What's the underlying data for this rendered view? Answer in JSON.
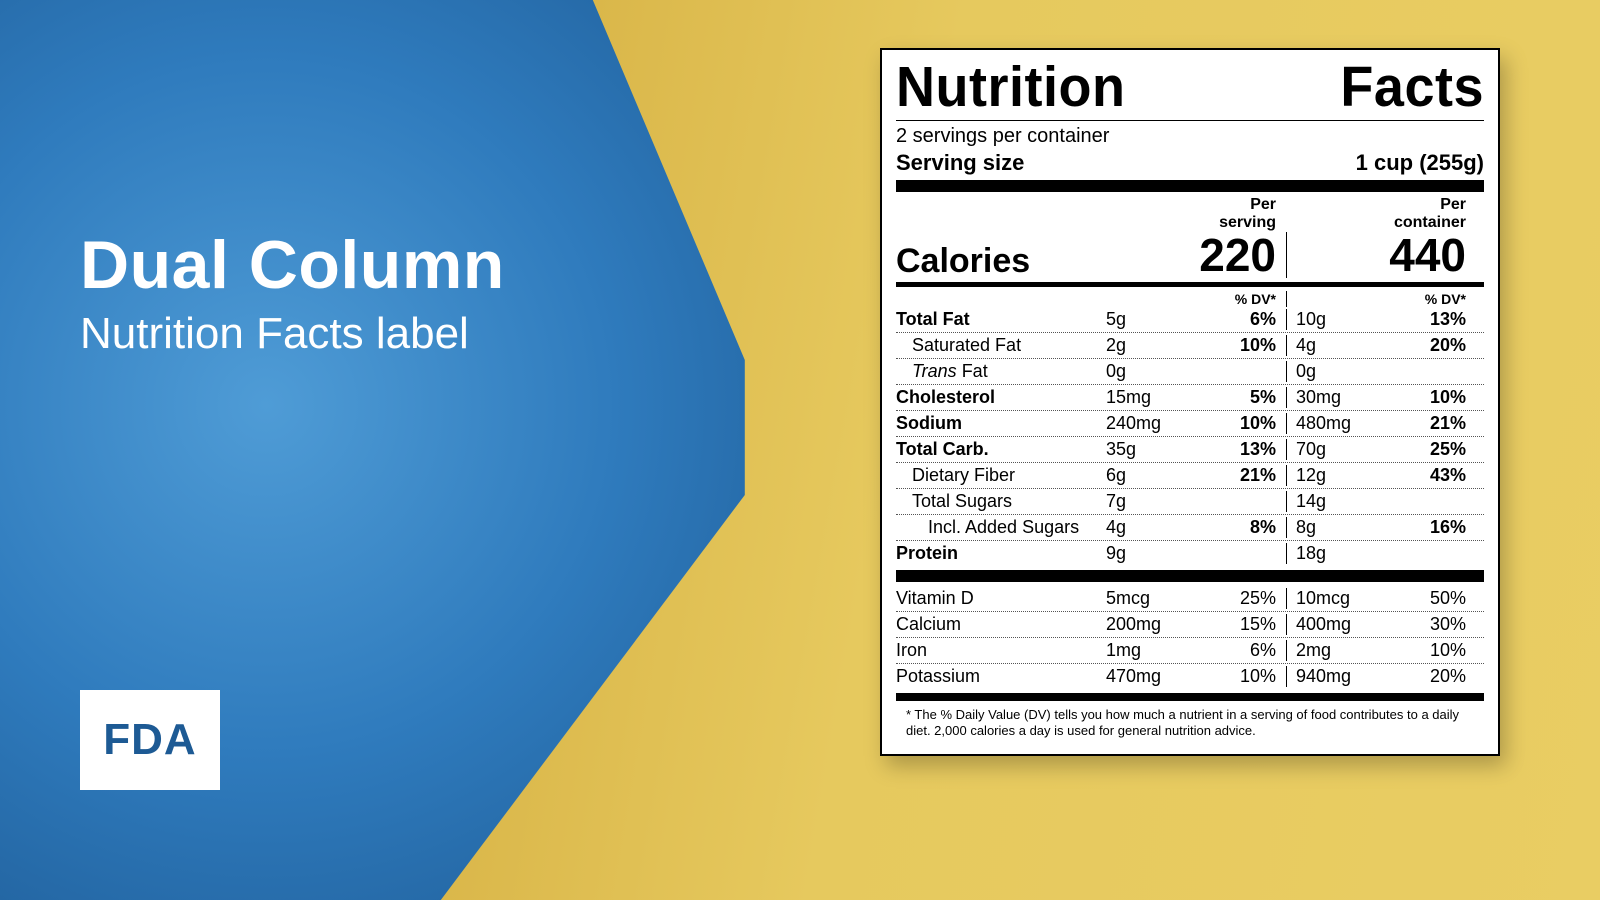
{
  "colors": {
    "blue_center": "#4f9cd6",
    "blue_mid": "#2f7bbd",
    "blue_edge": "#1d5a94",
    "gold_dark": "#c79a2a",
    "gold_light": "#e9cd63",
    "white": "#ffffff",
    "black": "#000000"
  },
  "left": {
    "title": "Dual Column",
    "subtitle": "Nutrition Facts label",
    "badge": "FDA"
  },
  "label": {
    "title_left": "Nutrition",
    "title_right": "Facts",
    "servings_line": "2 servings per container",
    "serving_size_label": "Serving size",
    "serving_size_value": "1 cup (255g)",
    "per_serving_header": "Per serving",
    "per_container_header": "Per container",
    "calories_label": "Calories",
    "calories_serving": "220",
    "calories_container": "440",
    "dv_header": "% DV*",
    "rows": [
      {
        "name": "Total Fat",
        "indent": 0,
        "bold": true,
        "s_amt": "5g",
        "s_dv": "6%",
        "c_amt": "10g",
        "c_dv": "13%"
      },
      {
        "name": "Saturated Fat",
        "indent": 1,
        "bold": false,
        "s_amt": "2g",
        "s_dv": "10%",
        "c_amt": "4g",
        "c_dv": "20%"
      },
      {
        "name_html": "trans_fat",
        "indent": 1,
        "bold": false,
        "s_amt": "0g",
        "s_dv": "",
        "c_amt": "0g",
        "c_dv": ""
      },
      {
        "name": "Cholesterol",
        "indent": 0,
        "bold": true,
        "s_amt": "15mg",
        "s_dv": "5%",
        "c_amt": "30mg",
        "c_dv": "10%"
      },
      {
        "name": "Sodium",
        "indent": 0,
        "bold": true,
        "s_amt": "240mg",
        "s_dv": "10%",
        "c_amt": "480mg",
        "c_dv": "21%"
      },
      {
        "name": "Total Carb.",
        "indent": 0,
        "bold": true,
        "s_amt": "35g",
        "s_dv": "13%",
        "c_amt": "70g",
        "c_dv": "25%"
      },
      {
        "name": "Dietary Fiber",
        "indent": 1,
        "bold": false,
        "s_amt": "6g",
        "s_dv": "21%",
        "c_amt": "12g",
        "c_dv": "43%"
      },
      {
        "name": "Total Sugars",
        "indent": 1,
        "bold": false,
        "s_amt": "7g",
        "s_dv": "",
        "c_amt": "14g",
        "c_dv": ""
      },
      {
        "name": "Incl. Added Sugars",
        "indent": 2,
        "bold": false,
        "s_amt": "4g",
        "s_dv": "8%",
        "c_amt": "8g",
        "c_dv": "16%"
      },
      {
        "name": "Protein",
        "indent": 0,
        "bold": true,
        "s_amt": "9g",
        "s_dv": "",
        "c_amt": "18g",
        "c_dv": ""
      }
    ],
    "trans_fat_italic": "Trans",
    "trans_fat_rest": " Fat",
    "vitamins": [
      {
        "name": "Vitamin D",
        "s_amt": "5mcg",
        "s_dv": "25%",
        "c_amt": "10mcg",
        "c_dv": "50%"
      },
      {
        "name": "Calcium",
        "s_amt": "200mg",
        "s_dv": "15%",
        "c_amt": "400mg",
        "c_dv": "30%"
      },
      {
        "name": "Iron",
        "s_amt": "1mg",
        "s_dv": "6%",
        "c_amt": "2mg",
        "c_dv": "10%"
      },
      {
        "name": "Potassium",
        "s_amt": "470mg",
        "s_dv": "10%",
        "c_amt": "940mg",
        "c_dv": "20%"
      }
    ],
    "footnote": "* The % Daily Value (DV) tells you how much a nutrient in a serving of food contributes to a daily diet. 2,000 calories a day is used for general nutrition advice."
  }
}
